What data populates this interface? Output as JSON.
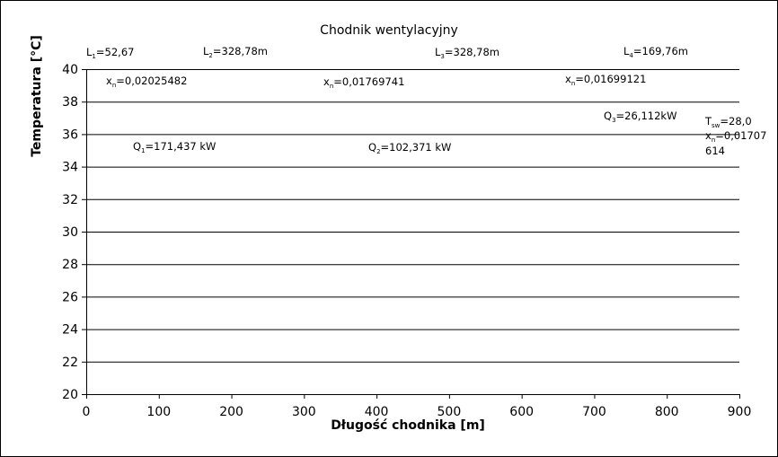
{
  "chart_data": {
    "type": "line",
    "title": "Chodnik wentylacyjny",
    "xlabel": "Długość chodnika [m]",
    "ylabel": "Temperatura [°C]",
    "xlim": [
      0,
      900
    ],
    "ylim": [
      20,
      40
    ],
    "x_ticks": [
      0,
      100,
      200,
      300,
      400,
      500,
      600,
      700,
      800,
      900
    ],
    "y_ticks": [
      20,
      22,
      24,
      26,
      28,
      30,
      32,
      34,
      36,
      38,
      40
    ],
    "grid": "horizontal",
    "series": [],
    "annotations": {
      "l1": {
        "main": "L",
        "sub": "1",
        "rest": "=52,67"
      },
      "l2": {
        "main": "L",
        "sub": "2",
        "rest": "=328,78m"
      },
      "l3": {
        "main": "L",
        "sub": "3",
        "rest": "=328,78m"
      },
      "l4": {
        "main": "L",
        "sub": "4",
        "rest": "=169,76m"
      },
      "x1": {
        "main": "x",
        "sub": "n",
        "rest": "=0,02025482"
      },
      "x2": {
        "main": "x",
        "sub": "n",
        "rest": "=0,01769741"
      },
      "x3": {
        "main": "x",
        "sub": "n",
        "rest": "=0,01699121"
      },
      "q1": {
        "main": "Q",
        "sub": "1",
        "rest": "=171,437 kW"
      },
      "q2": {
        "main": "Q",
        "sub": "2",
        "rest": "=102,371 kW"
      },
      "q3": {
        "main": "Q",
        "sub": "3",
        "rest": "=26,112kW"
      },
      "tsw": {
        "main": "T",
        "sub": "sw",
        "rest": "=28,0"
      },
      "x4": {
        "main": "x",
        "sub": "n",
        "rest": "=0,01707"
      },
      "x4_cont": "614"
    }
  }
}
